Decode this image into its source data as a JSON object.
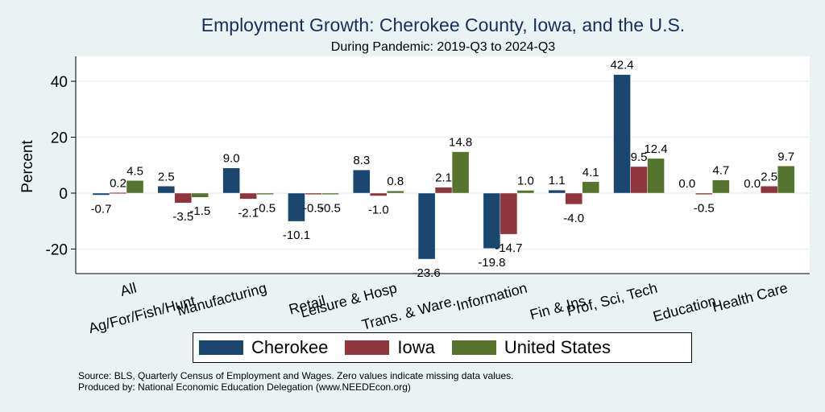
{
  "chart_data": {
    "type": "bar",
    "title": "Employment Growth: Cherokee County, Iowa, and the U.S.",
    "subtitle": "During Pandemic: 2019-Q3 to 2024-Q3",
    "xlabel": "",
    "ylabel": "Percent",
    "ylim": [
      -28,
      47
    ],
    "yticks": [
      -20,
      0,
      20,
      40
    ],
    "grid": true,
    "legend_position": "bottom",
    "categories": [
      "All",
      "Ag/For/Fish/Hunt",
      "Manufacturing",
      "Retail",
      "Leisure & Hosp",
      "Trans. & Ware.",
      "Information",
      "Fin & Ins",
      "Prof, Sci, Tech",
      "Education",
      "Health Care"
    ],
    "series": [
      {
        "name": "Cherokee",
        "color": "#1a476f",
        "values": [
          -0.7,
          2.5,
          9.0,
          -10.1,
          8.3,
          -23.6,
          -19.8,
          1.1,
          42.4,
          0.0,
          0.0
        ]
      },
      {
        "name": "Iowa",
        "color": "#90353b",
        "values": [
          0.2,
          -3.5,
          -2.1,
          -0.5,
          -1.0,
          2.1,
          -14.7,
          -4.0,
          9.5,
          -0.5,
          2.5
        ]
      },
      {
        "name": "United States",
        "color": "#55752f",
        "values": [
          4.5,
          -1.5,
          -0.5,
          -0.5,
          0.8,
          14.8,
          1.0,
          4.1,
          12.4,
          4.7,
          9.7
        ]
      }
    ]
  },
  "footer": {
    "source": "Source: BLS, Quarterly Census of Employment and Wages. Zero values indicate missing data values.",
    "produced_by": "Produced by: National Economic Education Delegation (www.NEEDEcon.org)"
  }
}
